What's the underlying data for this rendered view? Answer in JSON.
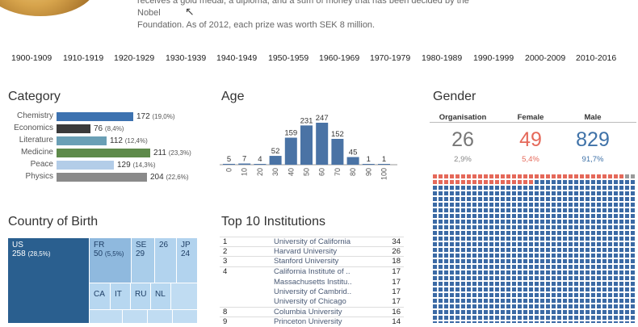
{
  "header": {
    "intro_line1": "receives a gold medal, a diploma, and a sum of money that has been decided by the Nobel",
    "intro_line2": "Foundation. As of 2012, each prize was worth SEK 8 million."
  },
  "decades": [
    "1900-1909",
    "1910-1919",
    "1920-1929",
    "1930-1939",
    "1940-1949",
    "1950-1959",
    "1960-1969",
    "1970-1979",
    "1980-1989",
    "1990-1999",
    "2000-2009",
    "2010-2016"
  ],
  "category": {
    "title": "Category",
    "items": [
      {
        "label": "Chemistry",
        "value": "172",
        "pct": "(19,0%)",
        "color": "#3d72b0",
        "frac": 0.815
      },
      {
        "label": "Economics",
        "value": "76",
        "pct": "(8,4%)",
        "color": "#3a3a3a",
        "frac": 0.36
      },
      {
        "label": "Literature",
        "value": "112",
        "pct": "(12,4%)",
        "color": "#6a9fb5",
        "frac": 0.531
      },
      {
        "label": "Medicine",
        "value": "211",
        "pct": "(23,3%)",
        "color": "#5e8a4a",
        "frac": 1.0
      },
      {
        "label": "Peace",
        "value": "129",
        "pct": "(14,3%)",
        "color": "#b3cde8",
        "frac": 0.611
      },
      {
        "label": "Physics",
        "value": "204",
        "pct": "(22,6%)",
        "color": "#8a8a8a",
        "frac": 0.967
      }
    ]
  },
  "age": {
    "title": "Age",
    "chart_data": {
      "type": "bar",
      "categories": [
        "0",
        "10",
        "20",
        "30",
        "40",
        "50",
        "60",
        "70",
        "80",
        "90",
        "100"
      ],
      "values": [
        5,
        7,
        4,
        52,
        159,
        231,
        247,
        152,
        45,
        1,
        1
      ],
      "ylim": [
        0,
        247
      ]
    }
  },
  "gender": {
    "title": "Gender",
    "columns": [
      {
        "head": "Organisation",
        "value": "26",
        "pct": "2,9%",
        "color": "#777777",
        "pctcolor": "#888888"
      },
      {
        "head": "Female",
        "value": "49",
        "pct": "5,4%",
        "color": "#e5695a",
        "pctcolor": "#e5695a"
      },
      {
        "head": "Male",
        "value": "829",
        "pct": "91,7%",
        "color": "#3f72a8",
        "pctcolor": "#3f72a8"
      }
    ],
    "waffle_colors": {
      "org": "#9a9a9a",
      "female": "#e5695a",
      "male": "#3b6aa5"
    }
  },
  "country": {
    "title": "Country of Birth",
    "cells": [
      {
        "code": "US",
        "value": "258",
        "pct": "(28,5%)"
      },
      {
        "code": "FR",
        "value": "50",
        "pct": "(5,5%)"
      },
      {
        "code": "SE",
        "value": "29",
        "pct": ""
      },
      {
        "code": "",
        "value": "26",
        "pct": ""
      },
      {
        "code": "JP",
        "value": "24",
        "pct": ""
      },
      {
        "code": "CA",
        "value": "",
        "pct": ""
      },
      {
        "code": "IT",
        "value": "",
        "pct": ""
      },
      {
        "code": "RU",
        "value": "",
        "pct": ""
      },
      {
        "code": "NL",
        "value": "",
        "pct": ""
      }
    ]
  },
  "institutions": {
    "title": "Top 10 Institutions",
    "rows": [
      {
        "rank": "1",
        "name": "University of California",
        "value": "34"
      },
      {
        "rank": "2",
        "name": "Harvard University",
        "value": "26"
      },
      {
        "rank": "3",
        "name": "Stanford University",
        "value": "18"
      },
      {
        "rank": "4",
        "name": "California Institute of ..",
        "value": "17"
      },
      {
        "rank": "",
        "name": "Massachusetts Institu..",
        "value": "17"
      },
      {
        "rank": "",
        "name": "University of Cambrid..",
        "value": "17"
      },
      {
        "rank": "",
        "name": "University of Chicago",
        "value": "17"
      },
      {
        "rank": "8",
        "name": "Columbia University",
        "value": "16"
      },
      {
        "rank": "9",
        "name": "Princeton University",
        "value": "14"
      }
    ]
  }
}
